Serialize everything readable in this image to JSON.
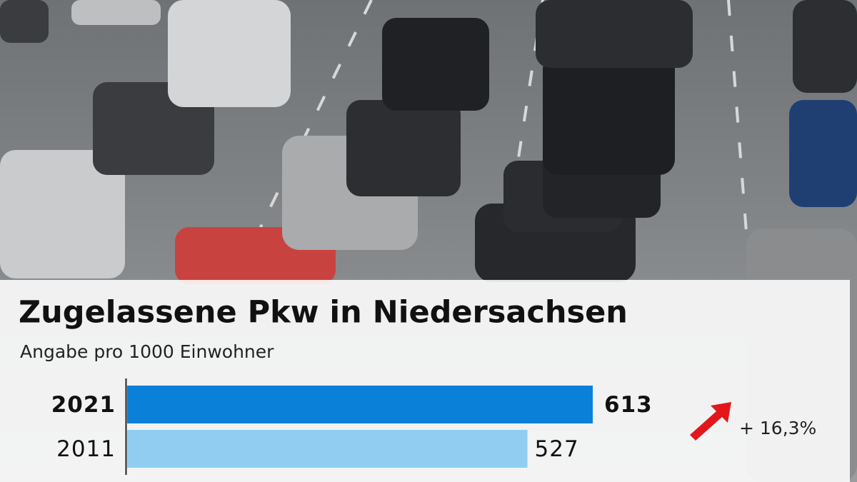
{
  "chart_data": {
    "type": "bar",
    "orientation": "horizontal",
    "title": "Zugelassene Pkw in Niedersachsen",
    "subtitle": "Angabe pro 1000 Einwohner",
    "categories": [
      "2021",
      "2011"
    ],
    "values": [
      613,
      527
    ],
    "colors": [
      "#0b80d8",
      "#90cdf1"
    ],
    "annotation": "+ 16,3%",
    "annotation_color": "#e3161b"
  }
}
